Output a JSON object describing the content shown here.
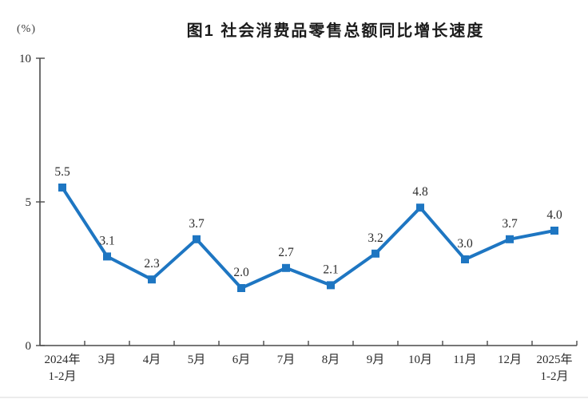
{
  "chart": {
    "unit_label": "(%)",
    "title": "图1 社会消费品零售总额同比增长速度"
  },
  "chart_data": {
    "type": "line",
    "title": "图1 社会消费品零售总额同比增长速度",
    "xlabel": "",
    "ylabel": "(%)",
    "categories": [
      "2024年\n1-2月",
      "3月",
      "4月",
      "5月",
      "6月",
      "7月",
      "8月",
      "9月",
      "10月",
      "11月",
      "12月",
      "2025年\n1-2月"
    ],
    "values": [
      5.5,
      3.1,
      2.3,
      3.7,
      2.0,
      2.7,
      2.1,
      3.2,
      4.8,
      3.0,
      3.7,
      4.0
    ],
    "value_labels": [
      "5.5",
      "3.1",
      "2.3",
      "3.7",
      "2.0",
      "2.7",
      "2.1",
      "3.2",
      "4.8",
      "3.0",
      "3.7",
      "4.0"
    ],
    "ylim": [
      0,
      10
    ],
    "yticks": [
      0,
      5,
      10
    ],
    "grid": false,
    "legend": "none",
    "line_color": "#1E76C2",
    "marker": "square",
    "marker_color": "#1E76C2",
    "axis_color": "#4a4a4a",
    "label_color": "#2b2b2b"
  }
}
